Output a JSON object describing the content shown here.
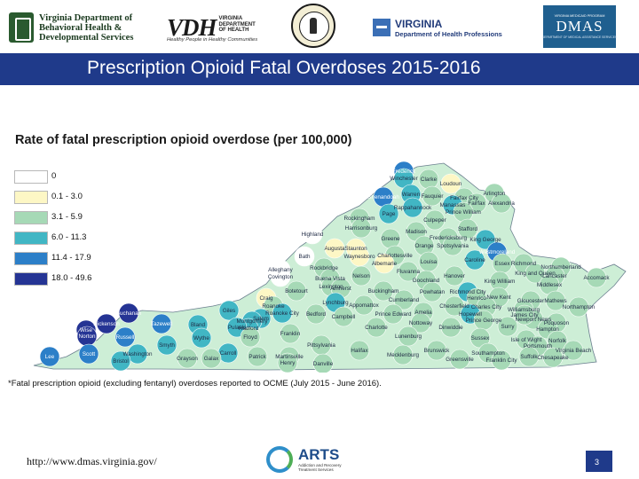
{
  "header": {
    "dbhds_name": "Virginia Department of\nBehavioral Health &\nDevelopmental Services",
    "vdh_letters": "VDH",
    "vdh_department": "VIRGINIA\nDEPARTMENT\nOF HEALTH",
    "vdh_tagline": "Healthy People in Healthy Communities",
    "dhp_state": "VIRGINIA",
    "dhp_department": "Department of Health Professions",
    "dmas_program": "VIRGINIA MEDICAID PROGRAM",
    "dmas_name": "DMAS",
    "dmas_department": "DEPARTMENT OF MEDICAL ASSISTANCE SERVICES"
  },
  "slide": {
    "title": "Prescription Opioid Fatal Overdoses 2015-2016",
    "page_number": "3"
  },
  "map": {
    "title": "Rate of fatal prescription opioid overdose (per 100,000)",
    "legend": [
      {
        "label": "0",
        "color": "#ffffff"
      },
      {
        "label": "0.1 - 3.0",
        "color": "#fdf7c5"
      },
      {
        "label": "3.1 - 5.9",
        "color": "#a6d9b6"
      },
      {
        "label": "6.0 - 11.3",
        "color": "#41b6c4"
      },
      {
        "label": "11.4 - 17.9",
        "color": "#2c7fc8"
      },
      {
        "label": "18.0 - 49.6",
        "color": "#253494"
      }
    ],
    "footnote": "*Fatal prescription opioid (excluding fentanyl) overdoses reported to OCME (July 2015 - June 2016).",
    "counties": [
      {
        "name": "Frederick",
        "bin": 4
      },
      {
        "name": "Winchester",
        "bin": 3
      },
      {
        "name": "Clarke",
        "bin": 2
      },
      {
        "name": "Loudoun",
        "bin": 1
      },
      {
        "name": "Shenandoah",
        "bin": 4
      },
      {
        "name": "Warren",
        "bin": 3
      },
      {
        "name": "Fauquier",
        "bin": 2
      },
      {
        "name": "Fairfax City",
        "bin": 2
      },
      {
        "name": "Arlington",
        "bin": 2
      },
      {
        "name": "Manassas",
        "bin": 3
      },
      {
        "name": "Fairfax",
        "bin": 2
      },
      {
        "name": "Alexandria",
        "bin": 2
      },
      {
        "name": "Rappahannock",
        "bin": 3
      },
      {
        "name": "Prince William",
        "bin": 2
      },
      {
        "name": "Rockingham",
        "bin": 2
      },
      {
        "name": "Page",
        "bin": 3
      },
      {
        "name": "Harrisonburg",
        "bin": 2
      },
      {
        "name": "Culpeper",
        "bin": 2
      },
      {
        "name": "Stafford",
        "bin": 2
      },
      {
        "name": "Highland",
        "bin": 0
      },
      {
        "name": "Madison",
        "bin": 2
      },
      {
        "name": "Greene",
        "bin": 2
      },
      {
        "name": "Fredericksburg",
        "bin": 2
      },
      {
        "name": "King George",
        "bin": 3
      },
      {
        "name": "Orange",
        "bin": 2
      },
      {
        "name": "Spotsylvania",
        "bin": 2
      },
      {
        "name": "Augusta",
        "bin": 1
      },
      {
        "name": "Staunton",
        "bin": 1
      },
      {
        "name": "Charlottesville",
        "bin": 2
      },
      {
        "name": "Waynesboro",
        "bin": 1
      },
      {
        "name": "Albemarle",
        "bin": 1
      },
      {
        "name": "Westmoreland",
        "bin": 4
      },
      {
        "name": "Bath",
        "bin": 0
      },
      {
        "name": "Louisa",
        "bin": 2
      },
      {
        "name": "Caroline",
        "bin": 3
      },
      {
        "name": "Essex",
        "bin": 2
      },
      {
        "name": "Richmond",
        "bin": 2
      },
      {
        "name": "Northumberland",
        "bin": 2
      },
      {
        "name": "Rockbridge",
        "bin": 2
      },
      {
        "name": "Alleghany",
        "bin": 0
      },
      {
        "name": "Covington",
        "bin": 0
      },
      {
        "name": "Buena Vista",
        "bin": 2
      },
      {
        "name": "Fluvanna",
        "bin": 2
      },
      {
        "name": "Hanover",
        "bin": 2
      },
      {
        "name": "King William",
        "bin": 2
      },
      {
        "name": "King and Queen",
        "bin": 2
      },
      {
        "name": "Lancaster",
        "bin": 2
      },
      {
        "name": "Middlesex",
        "bin": 2
      },
      {
        "name": "Accomack",
        "bin": 2
      },
      {
        "name": "Lexington",
        "bin": 2
      },
      {
        "name": "Nelson",
        "bin": 2
      },
      {
        "name": "Goochland",
        "bin": 2
      },
      {
        "name": "Amherst",
        "bin": 2
      },
      {
        "name": "Buckingham",
        "bin": 2
      },
      {
        "name": "Powhatan",
        "bin": 2
      },
      {
        "name": "Richmond City",
        "bin": 3
      },
      {
        "name": "Henrico",
        "bin": 2
      },
      {
        "name": "New Kent",
        "bin": 2
      },
      {
        "name": "Gloucester",
        "bin": 2
      },
      {
        "name": "Mathews",
        "bin": 2
      },
      {
        "name": "Botetourt",
        "bin": 2
      },
      {
        "name": "Craig",
        "bin": 1
      },
      {
        "name": "Lynchburg",
        "bin": 3
      },
      {
        "name": "Appomattox",
        "bin": 2
      },
      {
        "name": "Cumberland",
        "bin": 2
      },
      {
        "name": "Chesterfield",
        "bin": 2
      },
      {
        "name": "Charles City",
        "bin": 2
      },
      {
        "name": "Williamsburg",
        "bin": 2
      },
      {
        "name": "Roanoke",
        "bin": 2
      },
      {
        "name": "Roanoke City",
        "bin": 3
      },
      {
        "name": "Bedford",
        "bin": 2
      },
      {
        "name": "Campbell",
        "bin": 2
      },
      {
        "name": "Prince Edward",
        "bin": 2
      },
      {
        "name": "Amelia",
        "bin": 2
      },
      {
        "name": "Hopewell",
        "bin": 3
      },
      {
        "name": "Salem",
        "bin": 3
      },
      {
        "name": "Giles",
        "bin": 3
      },
      {
        "name": "Newport News",
        "bin": 2
      },
      {
        "name": "Northampton",
        "bin": 2
      },
      {
        "name": "Buchanan",
        "bin": 5
      },
      {
        "name": "Montgomery",
        "bin": 3
      },
      {
        "name": "Radford",
        "bin": 3
      },
      {
        "name": "Nottoway",
        "bin": 2
      },
      {
        "name": "Dinwiddie",
        "bin": 2
      },
      {
        "name": "Prince George",
        "bin": 2
      },
      {
        "name": "Surry",
        "bin": 2
      },
      {
        "name": "James City",
        "bin": 2
      },
      {
        "name": "Poquoson",
        "bin": 2
      },
      {
        "name": "Hampton",
        "bin": 2
      },
      {
        "name": "Dickenson",
        "bin": 5
      },
      {
        "name": "Tazewell",
        "bin": 4
      },
      {
        "name": "Bland",
        "bin": 3
      },
      {
        "name": "Pulaski",
        "bin": 3
      },
      {
        "name": "Franklin",
        "bin": 2
      },
      {
        "name": "Charlotte",
        "bin": 2
      },
      {
        "name": "Isle of Wight",
        "bin": 2
      },
      {
        "name": "Norfolk",
        "bin": 2
      },
      {
        "name": "Wise",
        "bin": 5
      },
      {
        "name": "Norton",
        "bin": 5
      },
      {
        "name": "Russell",
        "bin": 4
      },
      {
        "name": "Wythe",
        "bin": 3
      },
      {
        "name": "Floyd",
        "bin": 2
      },
      {
        "name": "Lunenburg",
        "bin": 2
      },
      {
        "name": "Sussex",
        "bin": 2
      },
      {
        "name": "Portsmouth",
        "bin": 2
      },
      {
        "name": "Virginia Beach",
        "bin": 2
      },
      {
        "name": "Smyth",
        "bin": 3
      },
      {
        "name": "Brunswick",
        "bin": 2
      },
      {
        "name": "Southampton",
        "bin": 2
      },
      {
        "name": "Suffolk",
        "bin": 2
      },
      {
        "name": "Chesapeake",
        "bin": 2
      },
      {
        "name": "Lee",
        "bin": 4
      },
      {
        "name": "Scott",
        "bin": 4
      },
      {
        "name": "Washington",
        "bin": 3
      },
      {
        "name": "Carroll",
        "bin": 3
      },
      {
        "name": "Patrick",
        "bin": 2
      },
      {
        "name": "Pittsylvania",
        "bin": 2
      },
      {
        "name": "Halifax",
        "bin": 2
      },
      {
        "name": "Mecklenburg",
        "bin": 2
      },
      {
        "name": "Greensville",
        "bin": 2
      },
      {
        "name": "Franklin City",
        "bin": 2
      },
      {
        "name": "Bristol",
        "bin": 3
      },
      {
        "name": "Grayson",
        "bin": 2
      },
      {
        "name": "Galax",
        "bin": 2
      },
      {
        "name": "Martinsville",
        "bin": 2
      },
      {
        "name": "Henry",
        "bin": 2
      },
      {
        "name": "Danville",
        "bin": 2
      }
    ]
  },
  "footer": {
    "url": "http://www.dmas.virginia.gov/",
    "arts_name": "ARTS",
    "arts_tagline": "Addiction and Recovery\nTreatment Services"
  }
}
